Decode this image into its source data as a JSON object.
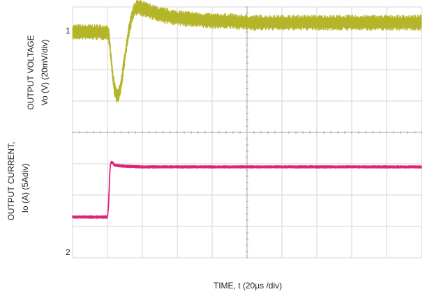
{
  "chart_data": {
    "type": "line",
    "title": "",
    "xlabel": "TIME, t (20µs /div)",
    "ylabel_left": {
      "top_line": "OUTPUT VOLTAGE",
      "bottom_line": "Vo (V) (20mV/div)"
    },
    "ylabel_right": {
      "top_line": "OUTPUT CURRENT,",
      "bottom_line": "Io (A)  (5Adiv)"
    },
    "x_unit": "µs",
    "x_per_div": 20,
    "x_divisions": 10,
    "y_divisions": 8,
    "grid": true,
    "channel_markers": [
      "1",
      "2"
    ],
    "colors": {
      "voltage": "#b5b52a",
      "current": "#e0247a",
      "grid_major": "#d6d6d6",
      "grid_minor": "#e9e9e9",
      "center_line": "#aaaaaa"
    },
    "series": [
      {
        "name": "",
        "channel": 1,
        "unit": "mV",
        "per_div": 20,
        "zero_div_from_top": 0.8,
        "noise_pp_mV": 10,
        "points": [
          [
            0,
            0
          ],
          [
            20,
            0
          ],
          [
            21,
            -4
          ],
          [
            22,
            -16
          ],
          [
            23,
            -28
          ],
          [
            24,
            -36
          ],
          [
            25,
            -40
          ],
          [
            26,
            -41
          ],
          [
            27,
            -38
          ],
          [
            28,
            -32
          ],
          [
            29,
            -24
          ],
          [
            30,
            -16
          ],
          [
            31,
            -8
          ],
          [
            32,
            -1
          ],
          [
            33,
            5
          ],
          [
            34,
            10
          ],
          [
            35,
            13
          ],
          [
            36,
            15
          ],
          [
            37,
            16
          ],
          [
            38,
            16
          ],
          [
            40,
            15
          ],
          [
            45,
            13
          ],
          [
            50,
            11
          ],
          [
            60,
            9
          ],
          [
            70,
            8
          ],
          [
            80,
            7
          ],
          [
            90,
            7
          ],
          [
            100,
            6
          ]
        ]
      },
      {
        "name": "",
        "channel": 2,
        "unit": "A",
        "per_div": 5,
        "zero_div_from_top": 6.7,
        "noise_pp_A": 0.35,
        "points": [
          [
            0,
            0
          ],
          [
            20,
            0
          ],
          [
            20.5,
            1.5
          ],
          [
            21,
            4.5
          ],
          [
            21.4,
            7.5
          ],
          [
            21.8,
            8.5
          ],
          [
            22.5,
            8.8
          ],
          [
            24,
            8.3
          ],
          [
            26,
            8.2
          ],
          [
            30,
            8.1
          ],
          [
            40,
            8
          ],
          [
            60,
            8
          ],
          [
            80,
            8
          ],
          [
            100,
            8
          ]
        ]
      }
    ]
  }
}
